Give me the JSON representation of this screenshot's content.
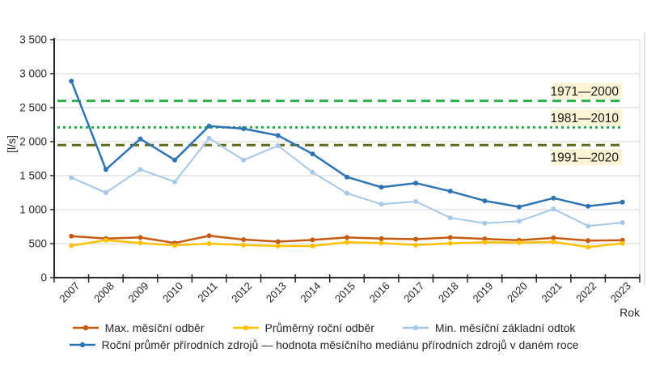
{
  "chart_data": {
    "type": "line",
    "title": "",
    "xlabel": "Rok",
    "ylabel": "[l/s]",
    "ylim": [
      0,
      3500
    ],
    "ytick_step": 500,
    "ytick_labels": [
      "0",
      "500",
      "1 000",
      "1 500",
      "2 000",
      "2 500",
      "3 000",
      "3 500"
    ],
    "grid": true,
    "legend_position": "bottom",
    "categories": [
      "2007",
      "2008",
      "2009",
      "2010",
      "2011",
      "2012",
      "2013",
      "2014",
      "2015",
      "2016",
      "2017",
      "2018",
      "2019",
      "2020",
      "2021",
      "2022",
      "2023"
    ],
    "series": [
      {
        "name": "Max. měsíční odběr",
        "color": "#c45a10",
        "marker": "circle",
        "values": [
          610,
          575,
          590,
          510,
          615,
          560,
          530,
          555,
          590,
          575,
          565,
          590,
          570,
          550,
          585,
          545,
          550
        ]
      },
      {
        "name": "Průměrný roční odběr",
        "color": "#fdc101",
        "marker": "circle",
        "values": [
          470,
          550,
          510,
          475,
          500,
          480,
          465,
          465,
          520,
          510,
          480,
          505,
          520,
          515,
          525,
          450,
          505
        ]
      },
      {
        "name": "Min. měsíční základní odtok",
        "color": "#a6c7e7",
        "marker": "circle",
        "values": [
          1470,
          1250,
          1590,
          1410,
          2050,
          1730,
          1940,
          1550,
          1240,
          1080,
          1120,
          880,
          800,
          830,
          1010,
          760,
          810
        ]
      },
      {
        "name": "Roční průměr přírodních zdrojů — hodnota měsíčního mediánu přírodních zdrojů v daném roce",
        "color": "#2e74b5",
        "marker": "circle",
        "values": [
          2890,
          1590,
          2040,
          1730,
          2230,
          2190,
          2090,
          1820,
          1480,
          1330,
          1390,
          1270,
          1130,
          1040,
          1170,
          1050,
          1110
        ]
      }
    ],
    "reference_lines": [
      {
        "label": "1971—2000",
        "value": 2600,
        "style": "dashed",
        "color": "#2eae4c",
        "label_position": "above"
      },
      {
        "label": "1981—2010",
        "value": 2210,
        "style": "dotted",
        "color": "#2eae4c",
        "label_position": "above"
      },
      {
        "label": "1991—2020",
        "value": 1950,
        "style": "dashed",
        "color": "#5e6b1f",
        "label_position": "below"
      }
    ],
    "legend_rows": [
      [
        0,
        1,
        2
      ],
      [
        3
      ]
    ]
  },
  "colors": {
    "grid": "#d6d6d6",
    "axis": "#262626",
    "text": "#262626",
    "annotation_bg": "#fdf3d5",
    "frame_edge": "#c6c6c6"
  }
}
